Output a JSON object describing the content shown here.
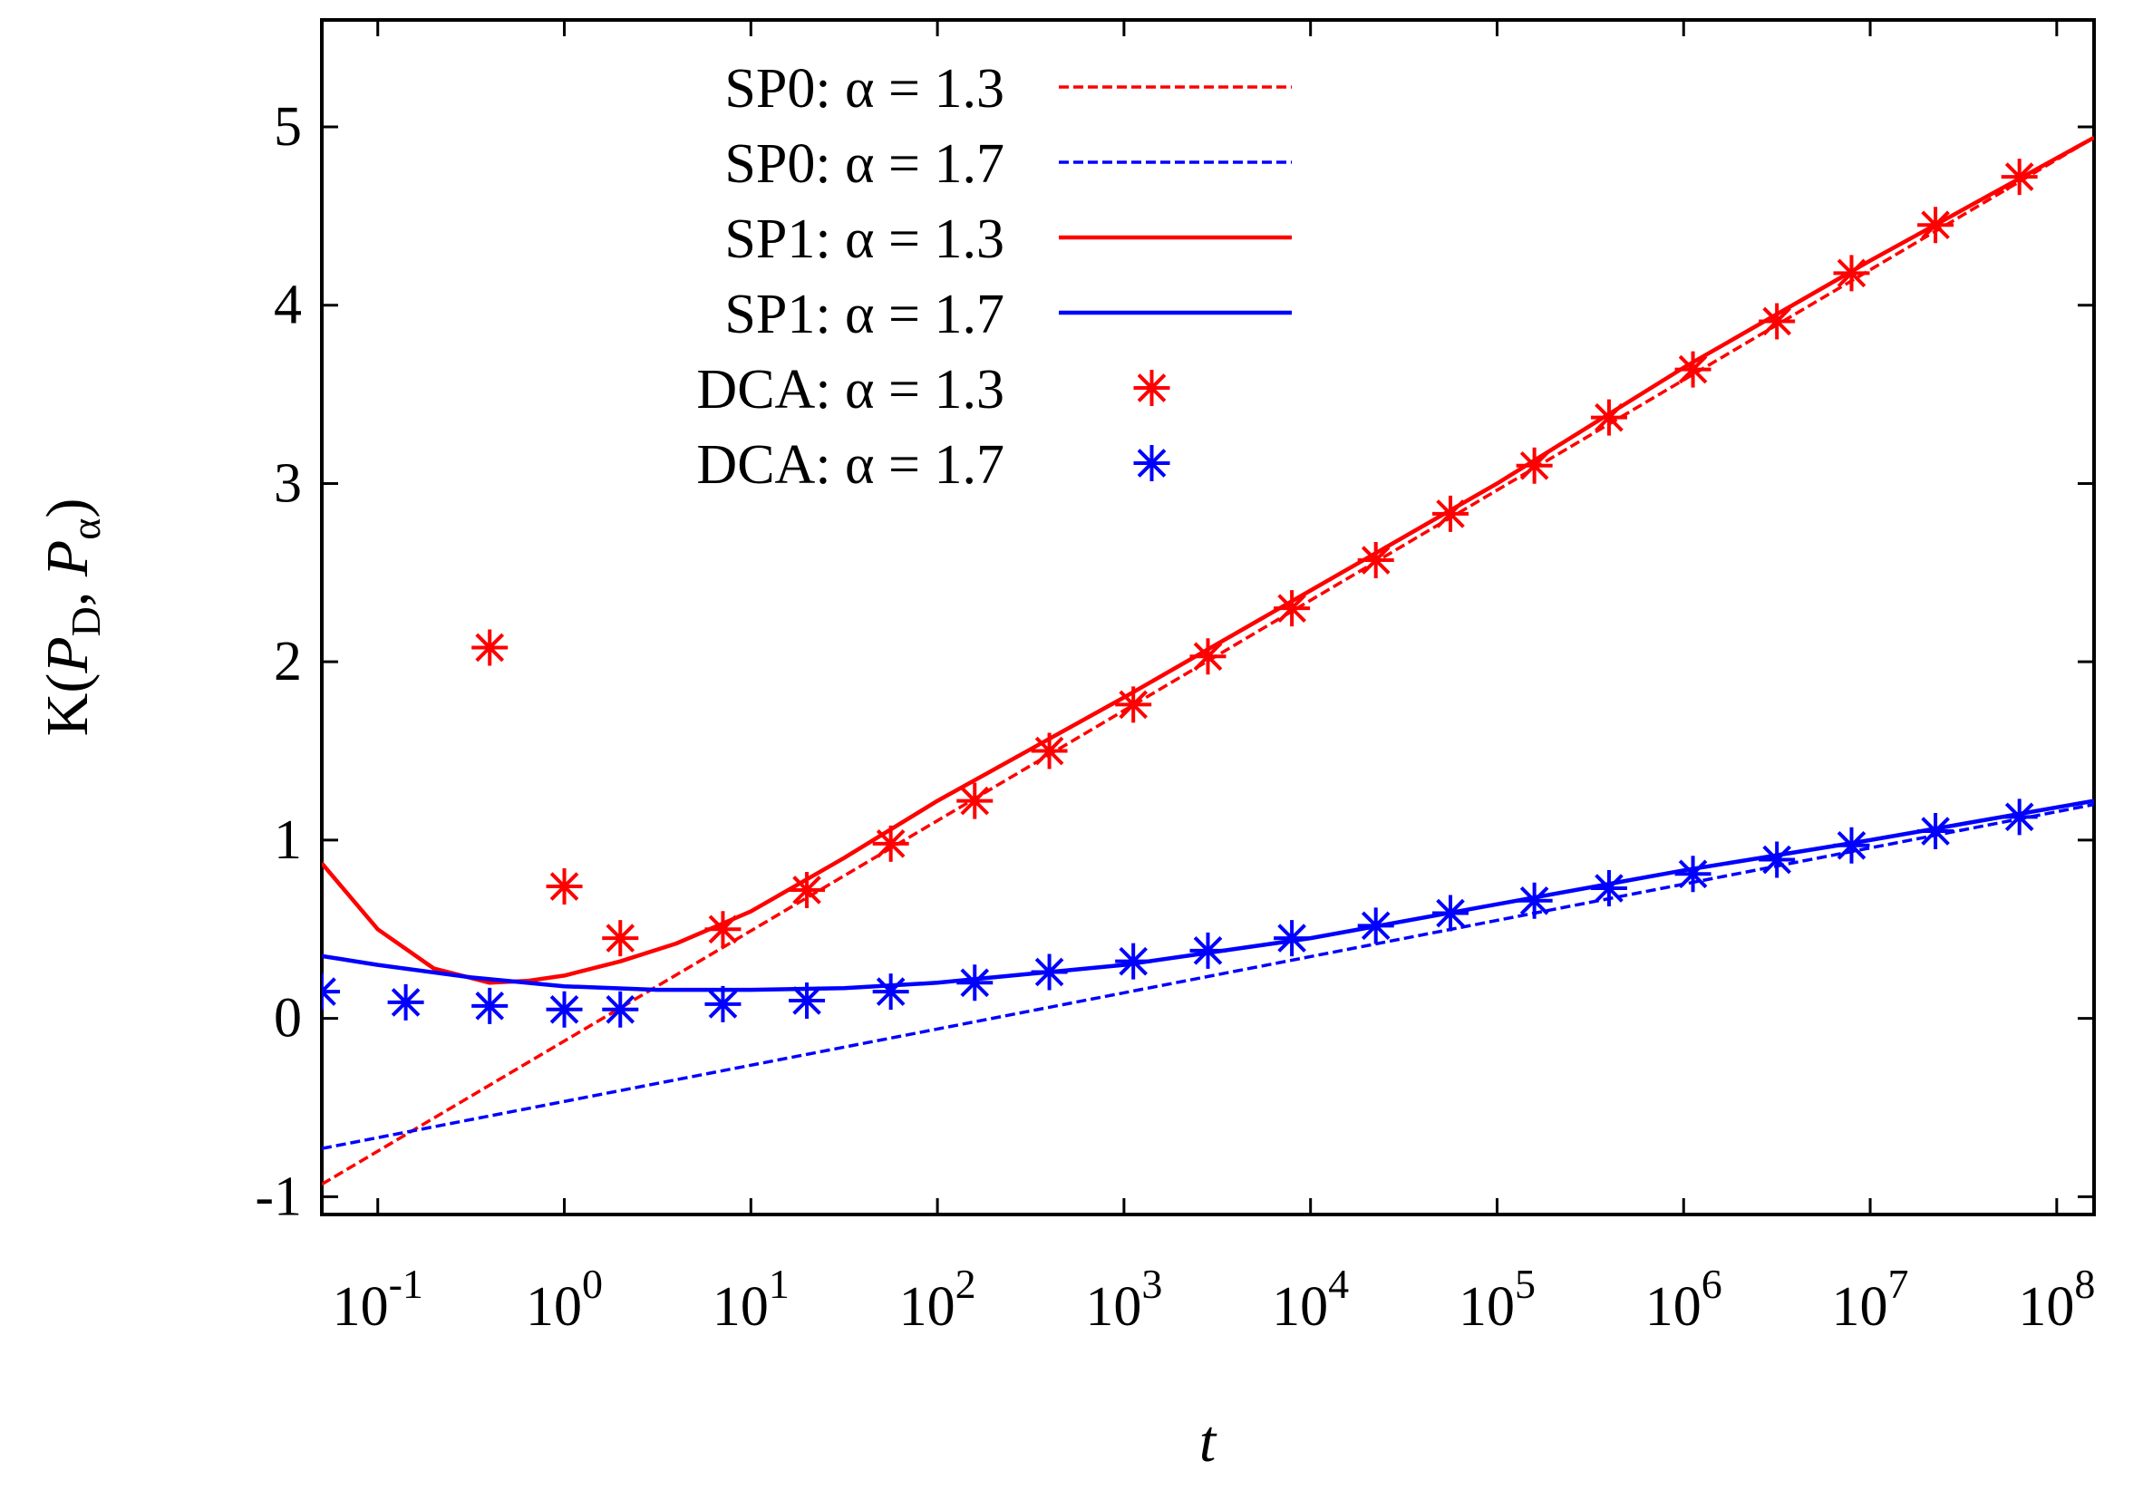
{
  "chart_data": {
    "type": "line",
    "xscale": "log10",
    "xlim_log10": [
      -1.3,
      8.2
    ],
    "ylim": [
      -1.1,
      5.6
    ],
    "grid": false,
    "xlabel": "t",
    "ylabel": {
      "prefix": "K(",
      "var1": "P",
      "sub1": "D",
      "sep": ", ",
      "var2": "P",
      "sub2": "α",
      "suffix": ")"
    },
    "legend_position": "top-center",
    "yticks": [
      -1,
      0,
      1,
      2,
      3,
      4,
      5
    ],
    "yticklabels": [
      "-1",
      "0",
      "1",
      "2",
      "3",
      "4",
      "5"
    ],
    "xticks_log10": [
      -1,
      0,
      1,
      2,
      3,
      4,
      5,
      6,
      7,
      8
    ],
    "xtick_base": "10",
    "xtick_exponents": [
      "-1",
      "0",
      "1",
      "2",
      "3",
      "4",
      "5",
      "6",
      "7",
      "8"
    ],
    "series": [
      {
        "name": "SP0: α = 1.3",
        "color": "#ff0000",
        "style": "dashed",
        "log10_x": [
          -1.3,
          8.2
        ],
        "y": [
          -0.93,
          4.94
        ]
      },
      {
        "name": "SP0: α = 1.7",
        "color": "#0000ff",
        "style": "dashed",
        "log10_x": [
          -1.3,
          8.2
        ],
        "y": [
          -0.73,
          1.2
        ]
      },
      {
        "name": "SP1: α = 1.3",
        "color": "#ff0000",
        "style": "solid",
        "log10_x": [
          -1.3,
          -1.0,
          -0.7,
          -0.4,
          -0.2,
          0.0,
          0.3,
          0.6,
          1.0,
          1.5,
          2.0,
          3.0,
          4.0,
          5.0,
          6.0,
          7.0,
          8.2
        ],
        "y": [
          0.87,
          0.5,
          0.28,
          0.2,
          0.21,
          0.24,
          0.32,
          0.42,
          0.6,
          0.9,
          1.22,
          1.8,
          2.4,
          3.0,
          3.65,
          4.25,
          4.94
        ]
      },
      {
        "name": "SP1: α = 1.7",
        "color": "#0000ff",
        "style": "solid",
        "log10_x": [
          -1.3,
          -1.0,
          -0.5,
          0.0,
          0.5,
          1.0,
          1.5,
          2.0,
          2.5,
          3.0,
          4.0,
          5.0,
          6.0,
          7.0,
          8.2
        ],
        "y": [
          0.35,
          0.3,
          0.23,
          0.18,
          0.16,
          0.16,
          0.17,
          0.2,
          0.25,
          0.3,
          0.45,
          0.64,
          0.83,
          1.0,
          1.22
        ]
      },
      {
        "name": "DCA: α = 1.3",
        "color": "#ff0000",
        "style": "marker",
        "log10_x": [
          -0.4,
          0.0,
          0.3,
          0.85,
          1.3,
          1.75,
          2.2,
          2.6,
          3.05,
          3.45,
          3.9,
          4.35,
          4.75,
          5.2,
          5.6,
          6.05,
          6.5,
          6.9,
          7.35,
          7.8
        ],
        "y": [
          2.08,
          0.74,
          0.45,
          0.5,
          0.72,
          0.98,
          1.22,
          1.5,
          1.76,
          2.03,
          2.3,
          2.57,
          2.83,
          3.1,
          3.37,
          3.64,
          3.91,
          4.18,
          4.45,
          4.72
        ]
      },
      {
        "name": "DCA: α = 1.7",
        "color": "#0000ff",
        "style": "marker",
        "log10_x": [
          -1.3,
          -0.85,
          -0.4,
          0.0,
          0.3,
          0.85,
          1.3,
          1.75,
          2.2,
          2.6,
          3.05,
          3.45,
          3.9,
          4.35,
          4.75,
          5.2,
          5.6,
          6.05,
          6.5,
          6.9,
          7.35,
          7.8
        ],
        "y": [
          0.15,
          0.09,
          0.07,
          0.05,
          0.05,
          0.08,
          0.1,
          0.15,
          0.2,
          0.26,
          0.32,
          0.38,
          0.45,
          0.52,
          0.59,
          0.66,
          0.73,
          0.81,
          0.89,
          0.97,
          1.05,
          1.13
        ]
      }
    ]
  }
}
